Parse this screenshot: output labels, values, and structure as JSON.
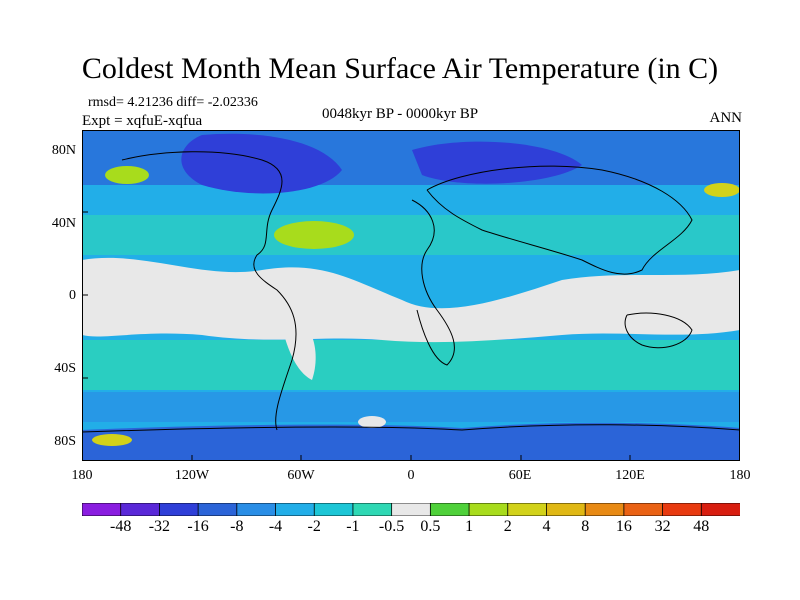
{
  "title": "Coldest Month Mean Surface Air Temperature (in C)",
  "stats": "rmsd= 4.21236 diff= -2.02336",
  "expt": "Expt = xqfuE-xqfua",
  "range": "0048kyr BP - 0000kyr BP",
  "season": "ANN",
  "lat_labels": [
    "80N",
    "40N",
    "0",
    "40S",
    "80S"
  ],
  "lon_labels": [
    "180",
    "120W",
    "60W",
    "0",
    "60E",
    "120E",
    "180"
  ],
  "colorbar": {
    "labels": [
      "-48",
      "-32",
      "-16",
      "-8",
      "-4",
      "-2",
      "-1",
      "-0.5",
      "0.5",
      "1",
      "2",
      "4",
      "8",
      "16",
      "32",
      "48"
    ],
    "colors": [
      "#8a1de0",
      "#5a28d8",
      "#2f3fd8",
      "#2b64d8",
      "#2a8ee6",
      "#22aee8",
      "#1dc6d6",
      "#2ed8b4",
      "#e8e8e8",
      "#4fd13a",
      "#a8dc1c",
      "#d2d21a",
      "#e0b814",
      "#e88a14",
      "#ea6214",
      "#e83a10",
      "#d81e10"
    ]
  }
}
